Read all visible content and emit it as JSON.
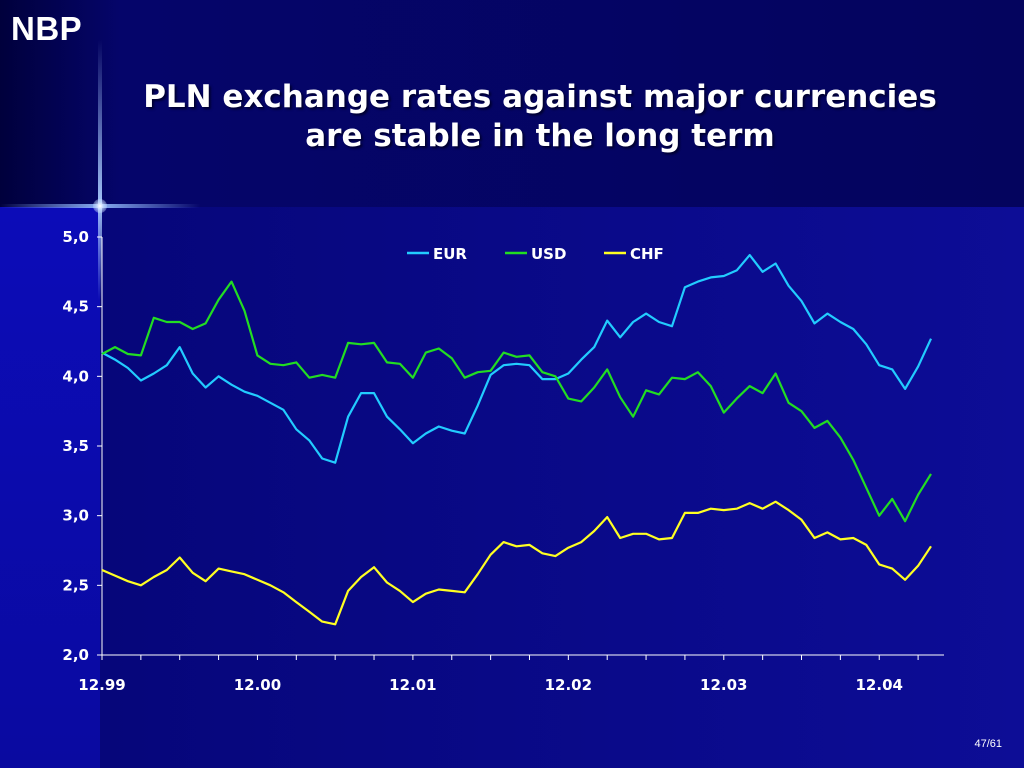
{
  "logo": "NBP",
  "title": {
    "line1": "PLN exchange rates against major currencies",
    "line2": "are stable in the long term"
  },
  "page_number": "47/61",
  "colors": {
    "EUR": "#22ccff",
    "USD": "#22dd22",
    "CHF": "#ffff22",
    "axis": "#ffffff",
    "text": "#ffffff"
  },
  "chart_data": {
    "type": "line",
    "title": "",
    "xlabel": "",
    "ylabel": "",
    "ylim": [
      2.0,
      5.0
    ],
    "y_ticks": [
      "2,0",
      "2,5",
      "3,0",
      "3,5",
      "4,0",
      "4,5",
      "5,0"
    ],
    "y_tick_values": [
      2.0,
      2.5,
      3.0,
      3.5,
      4.0,
      4.5,
      5.0
    ],
    "x_tick_labels": [
      "12.99",
      "12.00",
      "12.01",
      "12.02",
      "12.03",
      "12.04"
    ],
    "x_tick_months": [
      0,
      12,
      24,
      36,
      48,
      60
    ],
    "month_count": 65,
    "legend_position": "top-center",
    "grid": false,
    "series": [
      {
        "name": "EUR",
        "values": [
          4.17,
          4.12,
          4.06,
          3.97,
          4.02,
          4.08,
          4.21,
          4.02,
          3.92,
          4.0,
          3.94,
          3.89,
          3.86,
          3.81,
          3.76,
          3.62,
          3.54,
          3.41,
          3.38,
          3.71,
          3.88,
          3.88,
          3.71,
          3.62,
          3.52,
          3.59,
          3.64,
          3.61,
          3.59,
          3.79,
          4.01,
          4.08,
          4.09,
          4.08,
          3.98,
          3.98,
          4.02,
          4.12,
          4.21,
          4.4,
          4.28,
          4.39,
          4.45,
          4.39,
          4.36,
          4.64,
          4.68,
          4.71,
          4.72,
          4.76,
          4.87,
          4.75,
          4.81,
          4.65,
          4.54,
          4.38,
          4.45,
          4.39,
          4.34,
          4.23,
          4.08,
          4.05,
          3.91,
          4.07,
          4.27
        ]
      },
      {
        "name": "USD",
        "values": [
          4.16,
          4.21,
          4.16,
          4.15,
          4.42,
          4.39,
          4.39,
          4.34,
          4.38,
          4.55,
          4.68,
          4.47,
          4.15,
          4.09,
          4.08,
          4.1,
          3.99,
          4.01,
          3.99,
          4.24,
          4.23,
          4.24,
          4.1,
          4.09,
          3.99,
          4.17,
          4.2,
          4.13,
          3.99,
          4.03,
          4.04,
          4.17,
          4.14,
          4.15,
          4.03,
          4.0,
          3.84,
          3.82,
          3.92,
          4.05,
          3.85,
          3.71,
          3.9,
          3.87,
          3.99,
          3.98,
          4.03,
          3.93,
          3.74,
          3.84,
          3.93,
          3.88,
          4.02,
          3.81,
          3.75,
          3.63,
          3.68,
          3.56,
          3.4,
          3.2,
          3.0,
          3.12,
          2.96,
          3.15,
          3.3
        ]
      },
      {
        "name": "CHF",
        "values": [
          2.61,
          2.57,
          2.53,
          2.5,
          2.56,
          2.61,
          2.7,
          2.59,
          2.53,
          2.62,
          2.6,
          2.58,
          2.54,
          2.5,
          2.45,
          2.38,
          2.31,
          2.24,
          2.22,
          2.46,
          2.56,
          2.63,
          2.52,
          2.46,
          2.38,
          2.44,
          2.47,
          2.46,
          2.45,
          2.58,
          2.72,
          2.81,
          2.78,
          2.79,
          2.73,
          2.71,
          2.77,
          2.81,
          2.89,
          2.99,
          2.84,
          2.87,
          2.87,
          2.83,
          2.84,
          3.02,
          3.02,
          3.05,
          3.04,
          3.05,
          3.09,
          3.05,
          3.1,
          3.04,
          2.97,
          2.84,
          2.88,
          2.83,
          2.84,
          2.79,
          2.65,
          2.62,
          2.54,
          2.64,
          2.78
        ]
      }
    ]
  }
}
